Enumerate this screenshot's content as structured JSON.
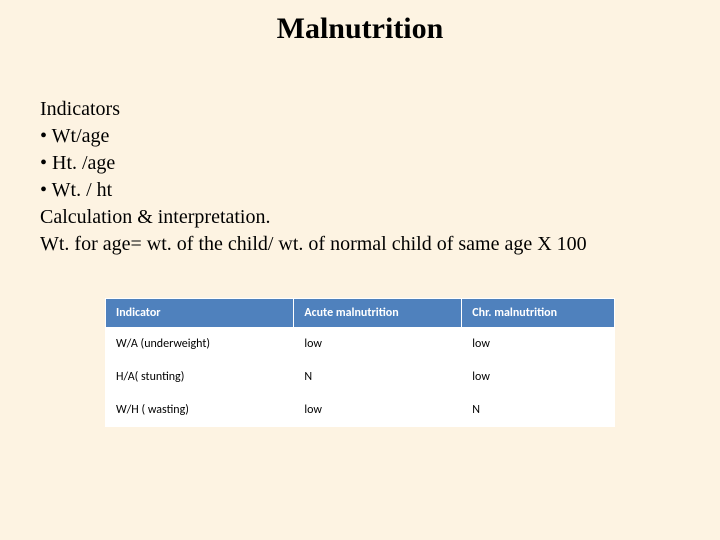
{
  "title": "Malnutrition",
  "body": {
    "line1": "Indicators",
    "line2": "• Wt/age",
    "line3": "• Ht. /age",
    "line4": "• Wt. / ht",
    "line5": "Calculation & interpretation.",
    "line6": "Wt. for age= wt. of the child/ wt. of normal child of same age X 100"
  },
  "table": {
    "header": {
      "c1": "Indicator",
      "c2": "Acute malnutrition",
      "c3": "Chr. malnutrition"
    },
    "rows": [
      {
        "c1": "W/A (underweight)",
        "c2": "low",
        "c3": "low"
      },
      {
        "c1": "H/A( stunting)",
        "c2": "N",
        "c3": "low"
      },
      {
        "c1": "W/H ( wasting)",
        "c2": "low",
        "c3": "N"
      }
    ],
    "header_bg": "#4f81bd",
    "header_fg": "#ffffff",
    "cell_bg": "#ffffff",
    "font_family": "Calibri",
    "font_size_pt": 9
  },
  "background_color": "#fdf3e2",
  "title_fontsize_pt": 30,
  "body_fontsize_pt": 20
}
